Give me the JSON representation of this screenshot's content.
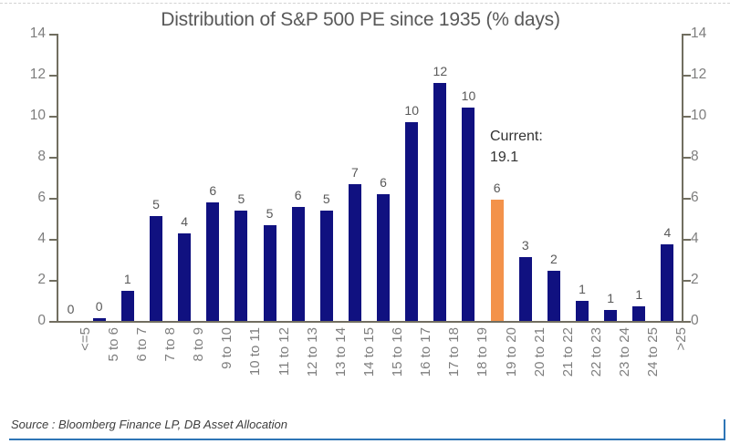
{
  "page": {
    "title": "Distribution of S&P 500 PE since 1935 (% days)",
    "source": "Source : Bloomberg Finance LP, DB Asset Allocation"
  },
  "annotation": {
    "line1": "Current:",
    "line2": "19.1"
  },
  "colors": {
    "bar": "#101180",
    "highlight": "#f3924a",
    "axis": "#716e60",
    "title_text": "#595959",
    "tick_label": "#7e7e7e",
    "bar_label": "#595959",
    "bottom_rule": "#2e75b6"
  },
  "chart_data": {
    "type": "bar",
    "title": "Distribution of S&P 500 PE since 1935 (% days)",
    "categories": [
      "<=5",
      "5 to 6",
      "6 to 7",
      "7 to 8",
      "8 to 9",
      "9 to 10",
      "10 to 11",
      "11 to 12",
      "12 to 13",
      "13 to 14",
      "14 to 15",
      "15 to 16",
      "16 to 17",
      "17 to 18",
      "18 to 19",
      "19 to 20",
      "20 to 21",
      "21 to 22",
      "22 to 23",
      "23 to 24",
      "24 to 25",
      ">25"
    ],
    "values": [
      0,
      0.12,
      1.45,
      5.1,
      4.25,
      5.8,
      5.4,
      4.65,
      5.55,
      5.4,
      6.65,
      6.2,
      9.7,
      11.6,
      10.4,
      5.9,
      3.1,
      2.45,
      1.0,
      0.55,
      0.7,
      3.75
    ],
    "bar_labels": [
      "0",
      "0",
      "1",
      "5",
      "4",
      "6",
      "5",
      "5",
      "6",
      "5",
      "7",
      "6",
      "10",
      "12",
      "10",
      "6",
      "3",
      "2",
      "1",
      "1",
      "1",
      "4"
    ],
    "highlight_index": 15,
    "highlight_annotation": "Current: 19.1",
    "xlabel": "",
    "ylabel": "",
    "ylim": [
      0,
      14
    ],
    "yticks": [
      0,
      2,
      4,
      6,
      8,
      10,
      12,
      14
    ],
    "dual_axis": true,
    "grid": false,
    "legend": "none"
  }
}
